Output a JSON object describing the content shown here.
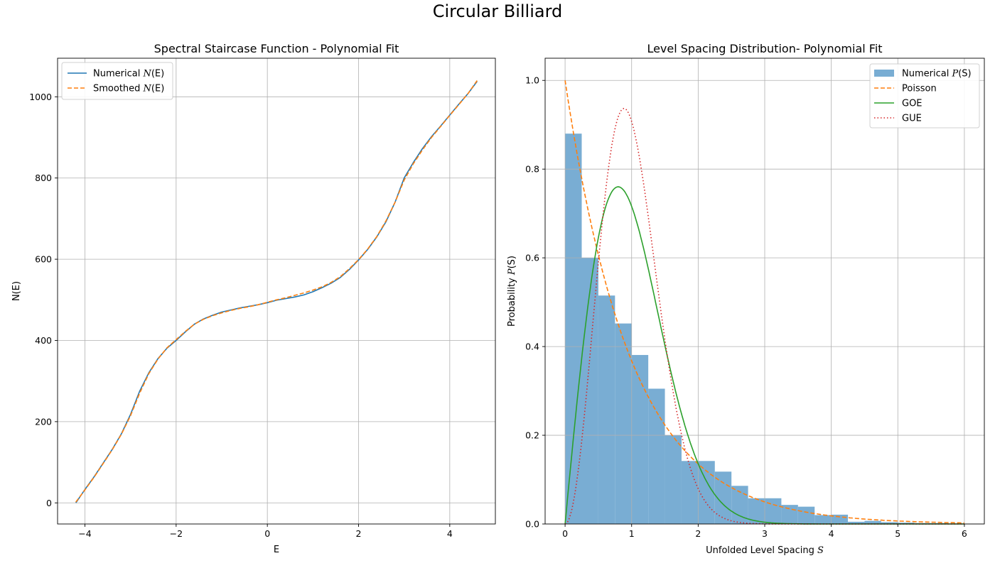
{
  "figure": {
    "title": "Circular Billiard"
  },
  "chart_data": [
    {
      "type": "line",
      "title": "Spectral Staircase Function - Polynomial Fit",
      "xlabel": "E",
      "ylabel": "N(E)",
      "xlim": [
        -4.6,
        5.0
      ],
      "ylim": [
        -52,
        1095
      ],
      "xticks": [
        -4,
        -2,
        0,
        2,
        4
      ],
      "xtick_labels": [
        "−4",
        "−2",
        "0",
        "2",
        "4"
      ],
      "yticks": [
        0,
        200,
        400,
        600,
        800,
        1000
      ],
      "ytick_labels": [
        "0",
        "200",
        "400",
        "600",
        "800",
        "1000"
      ],
      "grid": true,
      "legend_position": "upper-left",
      "legend": [
        {
          "prefix": "Numerical ",
          "math": "N",
          "suffix": "(E)"
        },
        {
          "prefix": "Smoothed ",
          "math": "N",
          "suffix": "(E)"
        }
      ],
      "series": [
        {
          "name": "Numerical N(E)",
          "style": "solid",
          "color": "#1f77b4",
          "x": [
            -4.2,
            -4.0,
            -3.8,
            -3.6,
            -3.4,
            -3.2,
            -3.0,
            -2.8,
            -2.6,
            -2.4,
            -2.2,
            -2.0,
            -1.8,
            -1.6,
            -1.4,
            -1.2,
            -1.0,
            -0.8,
            -0.6,
            -0.4,
            -0.2,
            0.0,
            0.2,
            0.4,
            0.6,
            0.8,
            1.0,
            1.2,
            1.4,
            1.6,
            1.8,
            2.0,
            2.2,
            2.4,
            2.6,
            2.8,
            3.0,
            3.2,
            3.4,
            3.6,
            3.8,
            4.0,
            4.2,
            4.4,
            4.6
          ],
          "y": [
            0,
            33,
            64,
            98,
            132,
            170,
            218,
            275,
            320,
            355,
            381,
            400,
            421,
            440,
            453,
            462,
            470,
            475,
            480,
            484,
            488,
            493,
            499,
            503,
            507,
            512,
            520,
            530,
            541,
            555,
            575,
            598,
            624,
            655,
            692,
            740,
            800,
            838,
            872,
            902,
            928,
            955,
            982,
            1008,
            1038
          ]
        },
        {
          "name": "Smoothed N(E)",
          "style": "dashed",
          "color": "#ff7f0e",
          "x": [
            -4.2,
            -4.0,
            -3.8,
            -3.6,
            -3.4,
            -3.2,
            -3.0,
            -2.8,
            -2.6,
            -2.4,
            -2.2,
            -2.0,
            -1.8,
            -1.6,
            -1.4,
            -1.2,
            -1.0,
            -0.8,
            -0.6,
            -0.4,
            -0.2,
            0.0,
            0.2,
            0.4,
            0.6,
            0.8,
            1.0,
            1.2,
            1.4,
            1.6,
            1.8,
            2.0,
            2.2,
            2.4,
            2.6,
            2.8,
            3.0,
            3.2,
            3.4,
            3.6,
            3.8,
            4.0,
            4.2,
            4.4,
            4.6
          ],
          "y": [
            2,
            32,
            63,
            97,
            131,
            169,
            215,
            270,
            318,
            354,
            382,
            402,
            422,
            440,
            452,
            461,
            468,
            474,
            479,
            483,
            488,
            494,
            500,
            505,
            511,
            517,
            524,
            532,
            543,
            557,
            577,
            599,
            625,
            656,
            694,
            740,
            795,
            835,
            869,
            900,
            927,
            954,
            981,
            1008,
            1040
          ]
        }
      ]
    },
    {
      "type": "bar",
      "title": "Level Spacing Distribution- Polynomial Fit",
      "xlabel_prefix": "Unfolded Level Spacing ",
      "xlabel_math": "S",
      "ylabel_prefix": "Probability ",
      "ylabel_math": "P",
      "ylabel_suffix": "(S)",
      "xlim": [
        -0.3,
        6.3
      ],
      "ylim": [
        0.0,
        1.05
      ],
      "xticks": [
        0,
        1,
        2,
        3,
        4,
        5,
        6
      ],
      "xtick_labels": [
        "0",
        "1",
        "2",
        "3",
        "4",
        "5",
        "6"
      ],
      "yticks": [
        0.0,
        0.2,
        0.4,
        0.6,
        0.8,
        1.0
      ],
      "ytick_labels": [
        "0.0",
        "0.2",
        "0.4",
        "0.6",
        "0.8",
        "1.0"
      ],
      "grid": true,
      "legend_position": "upper-right",
      "legend": [
        {
          "prefix": "Numerical ",
          "math": "P",
          "suffix": "(S)",
          "kind": "patch",
          "color": "#79add3"
        },
        {
          "prefix": "Poisson",
          "math": "",
          "suffix": "",
          "kind": "dashed",
          "color": "#ff7f0e"
        },
        {
          "prefix": "GOE",
          "math": "",
          "suffix": "",
          "kind": "solid",
          "color": "#2ca02c"
        },
        {
          "prefix": "GUE",
          "math": "",
          "suffix": "",
          "kind": "dotted",
          "color": "#d62728"
        }
      ],
      "histogram": {
        "name": "Numerical P(S)",
        "color": "#79add3",
        "bin_edges": [
          0.0,
          0.25,
          0.5,
          0.75,
          1.0,
          1.25,
          1.5,
          1.75,
          2.0,
          2.25,
          2.5,
          2.75,
          3.0,
          3.25,
          3.5,
          3.75,
          4.0,
          4.25,
          4.5,
          4.75,
          5.0,
          5.25,
          5.5,
          5.75,
          6.0
        ],
        "values": [
          0.88,
          0.6,
          0.515,
          0.452,
          0.381,
          0.305,
          0.2,
          0.142,
          0.142,
          0.118,
          0.086,
          0.058,
          0.058,
          0.043,
          0.039,
          0.02,
          0.021,
          0.005,
          0.007,
          0.004,
          0.003,
          0.002,
          0.002,
          0.001
        ]
      },
      "series": [
        {
          "name": "Poisson",
          "style": "dashed",
          "color": "#ff7f0e",
          "formula": "exp(-s)"
        },
        {
          "name": "GOE",
          "style": "solid",
          "color": "#2ca02c",
          "formula": "(pi/2) s exp(-pi s^2 / 4)"
        },
        {
          "name": "GUE",
          "style": "dotted",
          "color": "#d62728",
          "formula": "(32/pi^2) s^2 exp(-4 s^2 / pi)"
        }
      ]
    }
  ]
}
